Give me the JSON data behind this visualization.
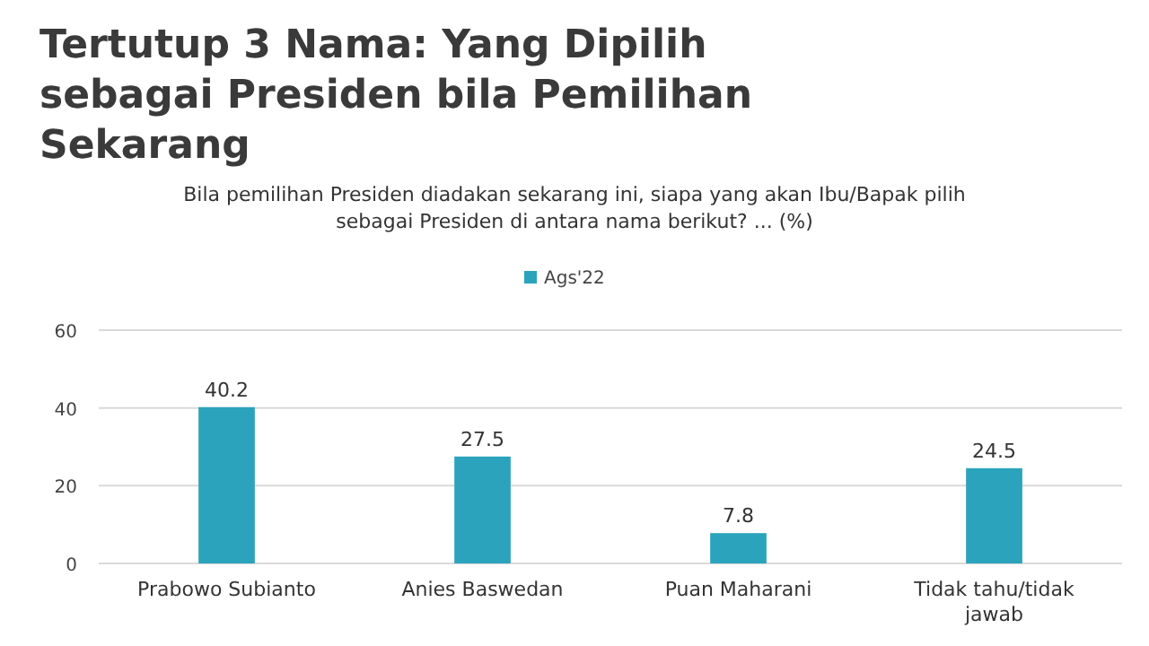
{
  "chart_data": {
    "type": "bar",
    "title": "Tertutup 3 Nama: Yang Dipilih sebagai Presiden bila Pemilihan Sekarang",
    "subtitle": "Bila pemilihan Presiden diadakan sekarang ini, siapa yang akan Ibu/Bapak pilih sebagai Presiden di antara nama berikut? ... (%)",
    "categories": [
      "Prabowo Subianto",
      "Anies Baswedan",
      "Puan Maharani",
      "Tidak tahu/tidak jawab"
    ],
    "series": [
      {
        "name": "Ags'22",
        "color": "#2ba3bc",
        "values": [
          40.2,
          27.5,
          7.8,
          24.5
        ]
      }
    ],
    "ylim": [
      0,
      60
    ],
    "yticks": [
      0,
      20,
      40,
      60
    ],
    "grid": "y",
    "legend": "top",
    "data_labels": true
  }
}
